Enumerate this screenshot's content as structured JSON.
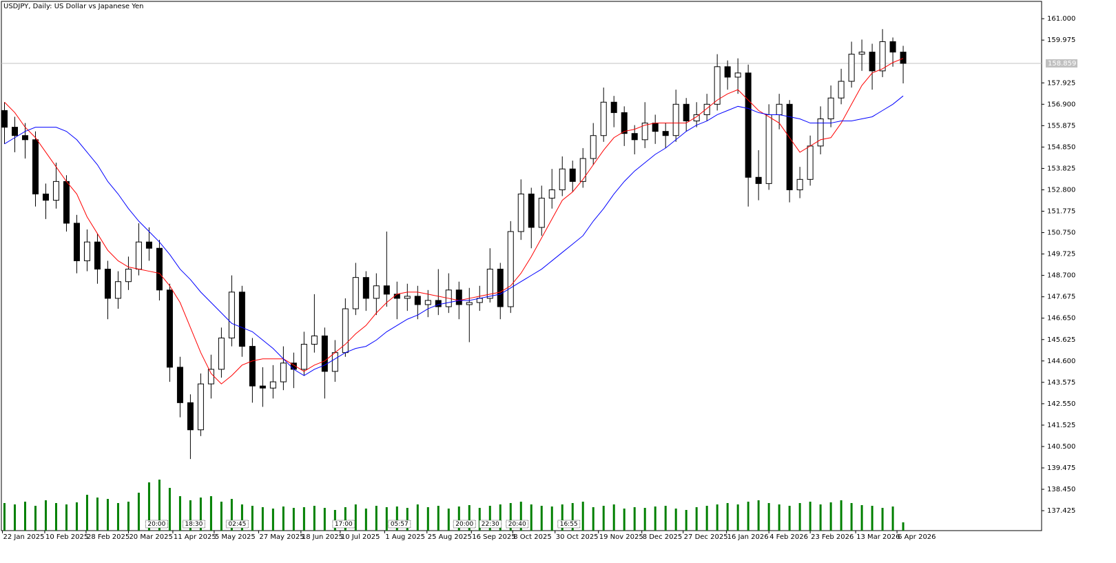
{
  "chart_data": {
    "type": "candlestick",
    "title": "USDJPY, Daily:  US Dollar vs Japanese Yen",
    "xlim": [
      -0.3,
      100.4
    ],
    "ylim": [
      136.47,
      161.83
    ],
    "yticks": [
      {
        "value": 161,
        "label": "161.000"
      },
      159.975,
      157.925,
      {
        "value": 156.9,
        "label": "156.900"
      },
      155.875,
      {
        "value": 154.85,
        "label": "154.850"
      },
      153.825,
      {
        "value": 152.8,
        "label": "152.800"
      },
      151.775,
      {
        "value": 150.75,
        "label": "150.750"
      },
      149.725,
      {
        "value": 148.7,
        "label": "148.700"
      },
      147.675,
      {
        "value": 146.65,
        "label": "146.650"
      },
      145.625,
      {
        "value": 144.6,
        "label": "144.600"
      },
      143.575,
      {
        "value": 142.55,
        "label": "142.550"
      },
      141.525,
      {
        "value": 140.5,
        "label": "140.500"
      },
      139.475,
      {
        "value": 138.45,
        "label": "138.450"
      },
      137.425
    ],
    "xticks": [
      {
        "value": -0.2,
        "label": "22 Jan 2025"
      },
      {
        "value": 3.9,
        "label": "10 Feb 2025"
      },
      {
        "value": 7.9,
        "label": "28 Feb 2025"
      },
      {
        "value": 12,
        "label": "20 Mar 2025"
      },
      {
        "value": 16.3,
        "label": "11 Apr 2025"
      },
      {
        "value": 20.3,
        "label": "5 May 2025"
      },
      {
        "value": 24.6,
        "label": "27 May 2025"
      },
      {
        "value": 28.7,
        "label": "18 Jun 2025"
      },
      {
        "value": 32.5,
        "label": "10 Jul 2025"
      },
      {
        "value": 36.8,
        "label": "1 Aug 2025"
      },
      {
        "value": 40.9,
        "label": "25 Aug 2025"
      },
      {
        "value": 45.2,
        "label": "16 Sep 2025"
      },
      {
        "value": 49.2,
        "label": "8 Oct 2025"
      },
      {
        "value": 53.3,
        "label": "30 Oct 2025"
      },
      {
        "value": 57.5,
        "label": "19 Nov 2025"
      },
      {
        "value": 61.7,
        "label": "8 Dec 2025"
      },
      {
        "value": 65.7,
        "label": "27 Dec 2025"
      },
      {
        "value": 69.9,
        "label": "16 Jan 2026"
      },
      {
        "value": 74,
        "label": "4 Feb 2026"
      },
      {
        "value": 78,
        "label": "23 Feb 2026"
      },
      {
        "value": 82.4,
        "label": "13 Mar 2026"
      },
      {
        "value": 86.4,
        "label": "6 Apr 2026"
      }
    ],
    "open": [
      156.6,
      155.8,
      155.4,
      155.2,
      152.6,
      152.3,
      153.2,
      151.2,
      149.4,
      150.3,
      149.0,
      147.6,
      148.4,
      149.0,
      150.3,
      150.0,
      148.0,
      144.3,
      142.6,
      141.3,
      143.5,
      144.2,
      145.7,
      147.9,
      145.3,
      143.4,
      143.3,
      143.6,
      144.5,
      144.2,
      145.4,
      145.8,
      144.1,
      145.0,
      147.1,
      148.6,
      147.6,
      148.2,
      147.8,
      147.6,
      147.7,
      147.3,
      147.5,
      147.2,
      148.0,
      147.3,
      147.4,
      147.6,
      149.0,
      147.2,
      150.8,
      152.6,
      151.0,
      152.4,
      152.8,
      153.8,
      153.2,
      154.3,
      155.4,
      157.0,
      156.5,
      155.5,
      155.2,
      156.0,
      155.6,
      155.4,
      156.9,
      156.1,
      156.4,
      156.9,
      158.7,
      158.2,
      158.4,
      153.4,
      153.1,
      156.4,
      156.9,
      152.8,
      153.3,
      154.9,
      156.2,
      157.2,
      158.0,
      159.3,
      159.4,
      158.5,
      159.9,
      159.4
    ],
    "high": [
      157.0,
      156.3,
      156.0,
      155.6,
      153.1,
      154.1,
      153.5,
      151.6,
      150.9,
      150.7,
      149.4,
      148.9,
      149.6,
      151.2,
      151.0,
      150.4,
      148.3,
      144.8,
      143.0,
      144.0,
      144.9,
      146.2,
      148.7,
      148.2,
      145.7,
      144.3,
      144.4,
      145.3,
      145.0,
      146.0,
      147.8,
      146.2,
      145.6,
      147.6,
      149.3,
      148.9,
      148.8,
      150.8,
      148.4,
      148.3,
      148.2,
      148.0,
      149.0,
      148.8,
      148.4,
      148.1,
      148.2,
      150.0,
      149.3,
      151.3,
      153.3,
      152.9,
      153.0,
      153.8,
      154.4,
      154.2,
      154.8,
      156.0,
      157.7,
      157.3,
      156.8,
      155.9,
      157.0,
      156.4,
      156.0,
      157.6,
      157.2,
      157.0,
      157.4,
      159.3,
      159.0,
      159.1,
      158.8,
      154.7,
      156.9,
      157.4,
      157.1,
      153.9,
      155.4,
      156.8,
      157.8,
      158.6,
      159.9,
      160.0,
      159.8,
      160.5,
      160.1,
      159.7
    ],
    "low": [
      155.0,
      154.6,
      154.3,
      152.0,
      151.4,
      151.9,
      150.8,
      148.8,
      148.9,
      148.3,
      146.6,
      147.1,
      148.0,
      148.7,
      149.4,
      147.5,
      143.6,
      141.9,
      139.9,
      141.0,
      142.8,
      143.8,
      145.3,
      144.8,
      142.6,
      142.4,
      142.8,
      143.2,
      143.3,
      143.9,
      145.0,
      142.8,
      143.6,
      144.8,
      146.8,
      147.0,
      146.8,
      147.2,
      146.6,
      147.0,
      146.6,
      146.7,
      146.8,
      146.9,
      146.6,
      145.5,
      147.0,
      147.4,
      146.6,
      146.9,
      150.4,
      150.0,
      150.6,
      151.9,
      152.5,
      152.7,
      152.9,
      154.0,
      155.1,
      155.8,
      154.9,
      154.5,
      154.8,
      155.0,
      154.8,
      155.1,
      155.6,
      155.8,
      156.1,
      156.6,
      157.6,
      157.4,
      152.0,
      152.3,
      152.8,
      155.7,
      152.2,
      152.4,
      153.0,
      154.5,
      155.8,
      156.9,
      157.7,
      158.5,
      157.6,
      158.2,
      158.7,
      157.9
    ],
    "close": [
      155.8,
      155.4,
      155.2,
      152.6,
      152.3,
      153.2,
      151.2,
      149.4,
      150.3,
      149.0,
      147.6,
      148.4,
      149.0,
      150.3,
      150.0,
      148.0,
      144.3,
      142.6,
      141.3,
      143.5,
      144.2,
      145.7,
      147.9,
      145.3,
      143.4,
      143.3,
      143.6,
      144.5,
      144.2,
      145.4,
      145.8,
      144.1,
      145.0,
      147.1,
      148.6,
      147.6,
      148.2,
      147.8,
      147.6,
      147.7,
      147.3,
      147.5,
      147.2,
      148.0,
      147.3,
      147.4,
      147.6,
      149.0,
      147.2,
      150.8,
      152.6,
      151.0,
      152.4,
      152.8,
      153.8,
      153.2,
      154.3,
      155.4,
      157.0,
      156.5,
      155.5,
      155.2,
      156.0,
      155.6,
      155.4,
      156.9,
      156.1,
      156.4,
      156.9,
      158.7,
      158.2,
      158.4,
      153.4,
      153.1,
      156.4,
      156.9,
      152.8,
      153.3,
      154.9,
      156.2,
      157.2,
      158.0,
      159.3,
      159.4,
      158.5,
      159.9,
      159.4,
      158.86
    ],
    "volume": [
      40,
      38,
      42,
      36,
      44,
      40,
      38,
      41,
      52,
      48,
      46,
      40,
      42,
      55,
      70,
      74,
      62,
      50,
      44,
      48,
      50,
      42,
      46,
      38,
      36,
      34,
      32,
      35,
      33,
      34,
      36,
      33,
      30,
      34,
      38,
      32,
      36,
      34,
      35,
      33,
      38,
      34,
      36,
      32,
      35,
      37,
      33,
      36,
      38,
      40,
      42,
      38,
      36,
      35,
      38,
      40,
      42,
      34,
      36,
      38,
      32,
      34,
      33,
      35,
      36,
      32,
      30,
      34,
      36,
      38,
      40,
      38,
      42,
      44,
      40,
      38,
      36,
      40,
      42,
      38,
      41,
      44,
      40,
      37,
      36,
      33,
      35,
      12
    ],
    "volume_color": "#008000",
    "up_color": "#ffffff",
    "down_color": "#000000",
    "moving_averages": [
      {
        "color": "#ff0000",
        "values": [
          157.0,
          156.5,
          155.8,
          155.3,
          154.6,
          153.9,
          153.2,
          152.6,
          151.5,
          150.7,
          149.9,
          149.4,
          149.1,
          149.0,
          148.9,
          148.8,
          148.2,
          147.4,
          146.2,
          145.0,
          144.0,
          143.5,
          143.9,
          144.4,
          144.6,
          144.7,
          144.7,
          144.7,
          144.4,
          144.1,
          144.4,
          144.6,
          145.0,
          145.4,
          145.9,
          146.3,
          146.9,
          147.4,
          147.8,
          147.9,
          147.9,
          147.8,
          147.7,
          147.6,
          147.5,
          147.6,
          147.7,
          147.8,
          147.9,
          148.2,
          148.8,
          149.6,
          150.5,
          151.4,
          152.3,
          152.7,
          153.3,
          154.0,
          154.7,
          155.3,
          155.6,
          155.7,
          155.9,
          156.0,
          156.0,
          156.0,
          156.0,
          156.3,
          156.7,
          157.1,
          157.4,
          157.6,
          157.1,
          156.6,
          156.3,
          156.0,
          155.3,
          154.6,
          154.9,
          155.2,
          155.3,
          156.0,
          156.9,
          157.8,
          158.4,
          158.6,
          158.9,
          159.1
        ]
      },
      {
        "color": "#0000ff",
        "values": [
          155.0,
          155.3,
          155.6,
          155.8,
          155.8,
          155.8,
          155.6,
          155.2,
          154.6,
          154.0,
          153.2,
          152.6,
          151.9,
          151.3,
          150.8,
          150.3,
          149.7,
          149.0,
          148.5,
          147.9,
          147.4,
          146.9,
          146.4,
          146.2,
          146.0,
          145.6,
          145.2,
          144.7,
          144.2,
          143.9,
          144.2,
          144.4,
          144.7,
          145.0,
          145.2,
          145.3,
          145.6,
          146.0,
          146.3,
          146.6,
          146.8,
          147.1,
          147.3,
          147.4,
          147.5,
          147.5,
          147.6,
          147.7,
          147.8,
          148.1,
          148.4,
          148.7,
          149.0,
          149.4,
          149.8,
          150.2,
          150.6,
          151.3,
          151.9,
          152.6,
          153.2,
          153.7,
          154.1,
          154.5,
          154.8,
          155.2,
          155.6,
          155.9,
          156.1,
          156.4,
          156.6,
          156.8,
          156.7,
          156.5,
          156.4,
          156.4,
          156.3,
          156.2,
          156.0,
          156.0,
          156.0,
          156.1,
          156.1,
          156.2,
          156.3,
          156.6,
          156.9,
          157.3
        ]
      }
    ],
    "last_price": 158.859,
    "last_price_color": "#c0c0c0",
    "events": [
      {
        "x": 13.8,
        "label": "20:00"
      },
      {
        "x": 17.4,
        "label": "18:30"
      },
      {
        "x": 21.6,
        "label": "02:45"
      },
      {
        "x": 31.9,
        "label": "17:00"
      },
      {
        "x": 37.3,
        "label": "05:57"
      },
      {
        "x": 43.6,
        "label": "20:00"
      },
      {
        "x": 46.1,
        "label": "22:30"
      },
      {
        "x": 48.7,
        "label": "20:40"
      },
      {
        "x": 53.7,
        "label": "16:55"
      }
    ]
  }
}
